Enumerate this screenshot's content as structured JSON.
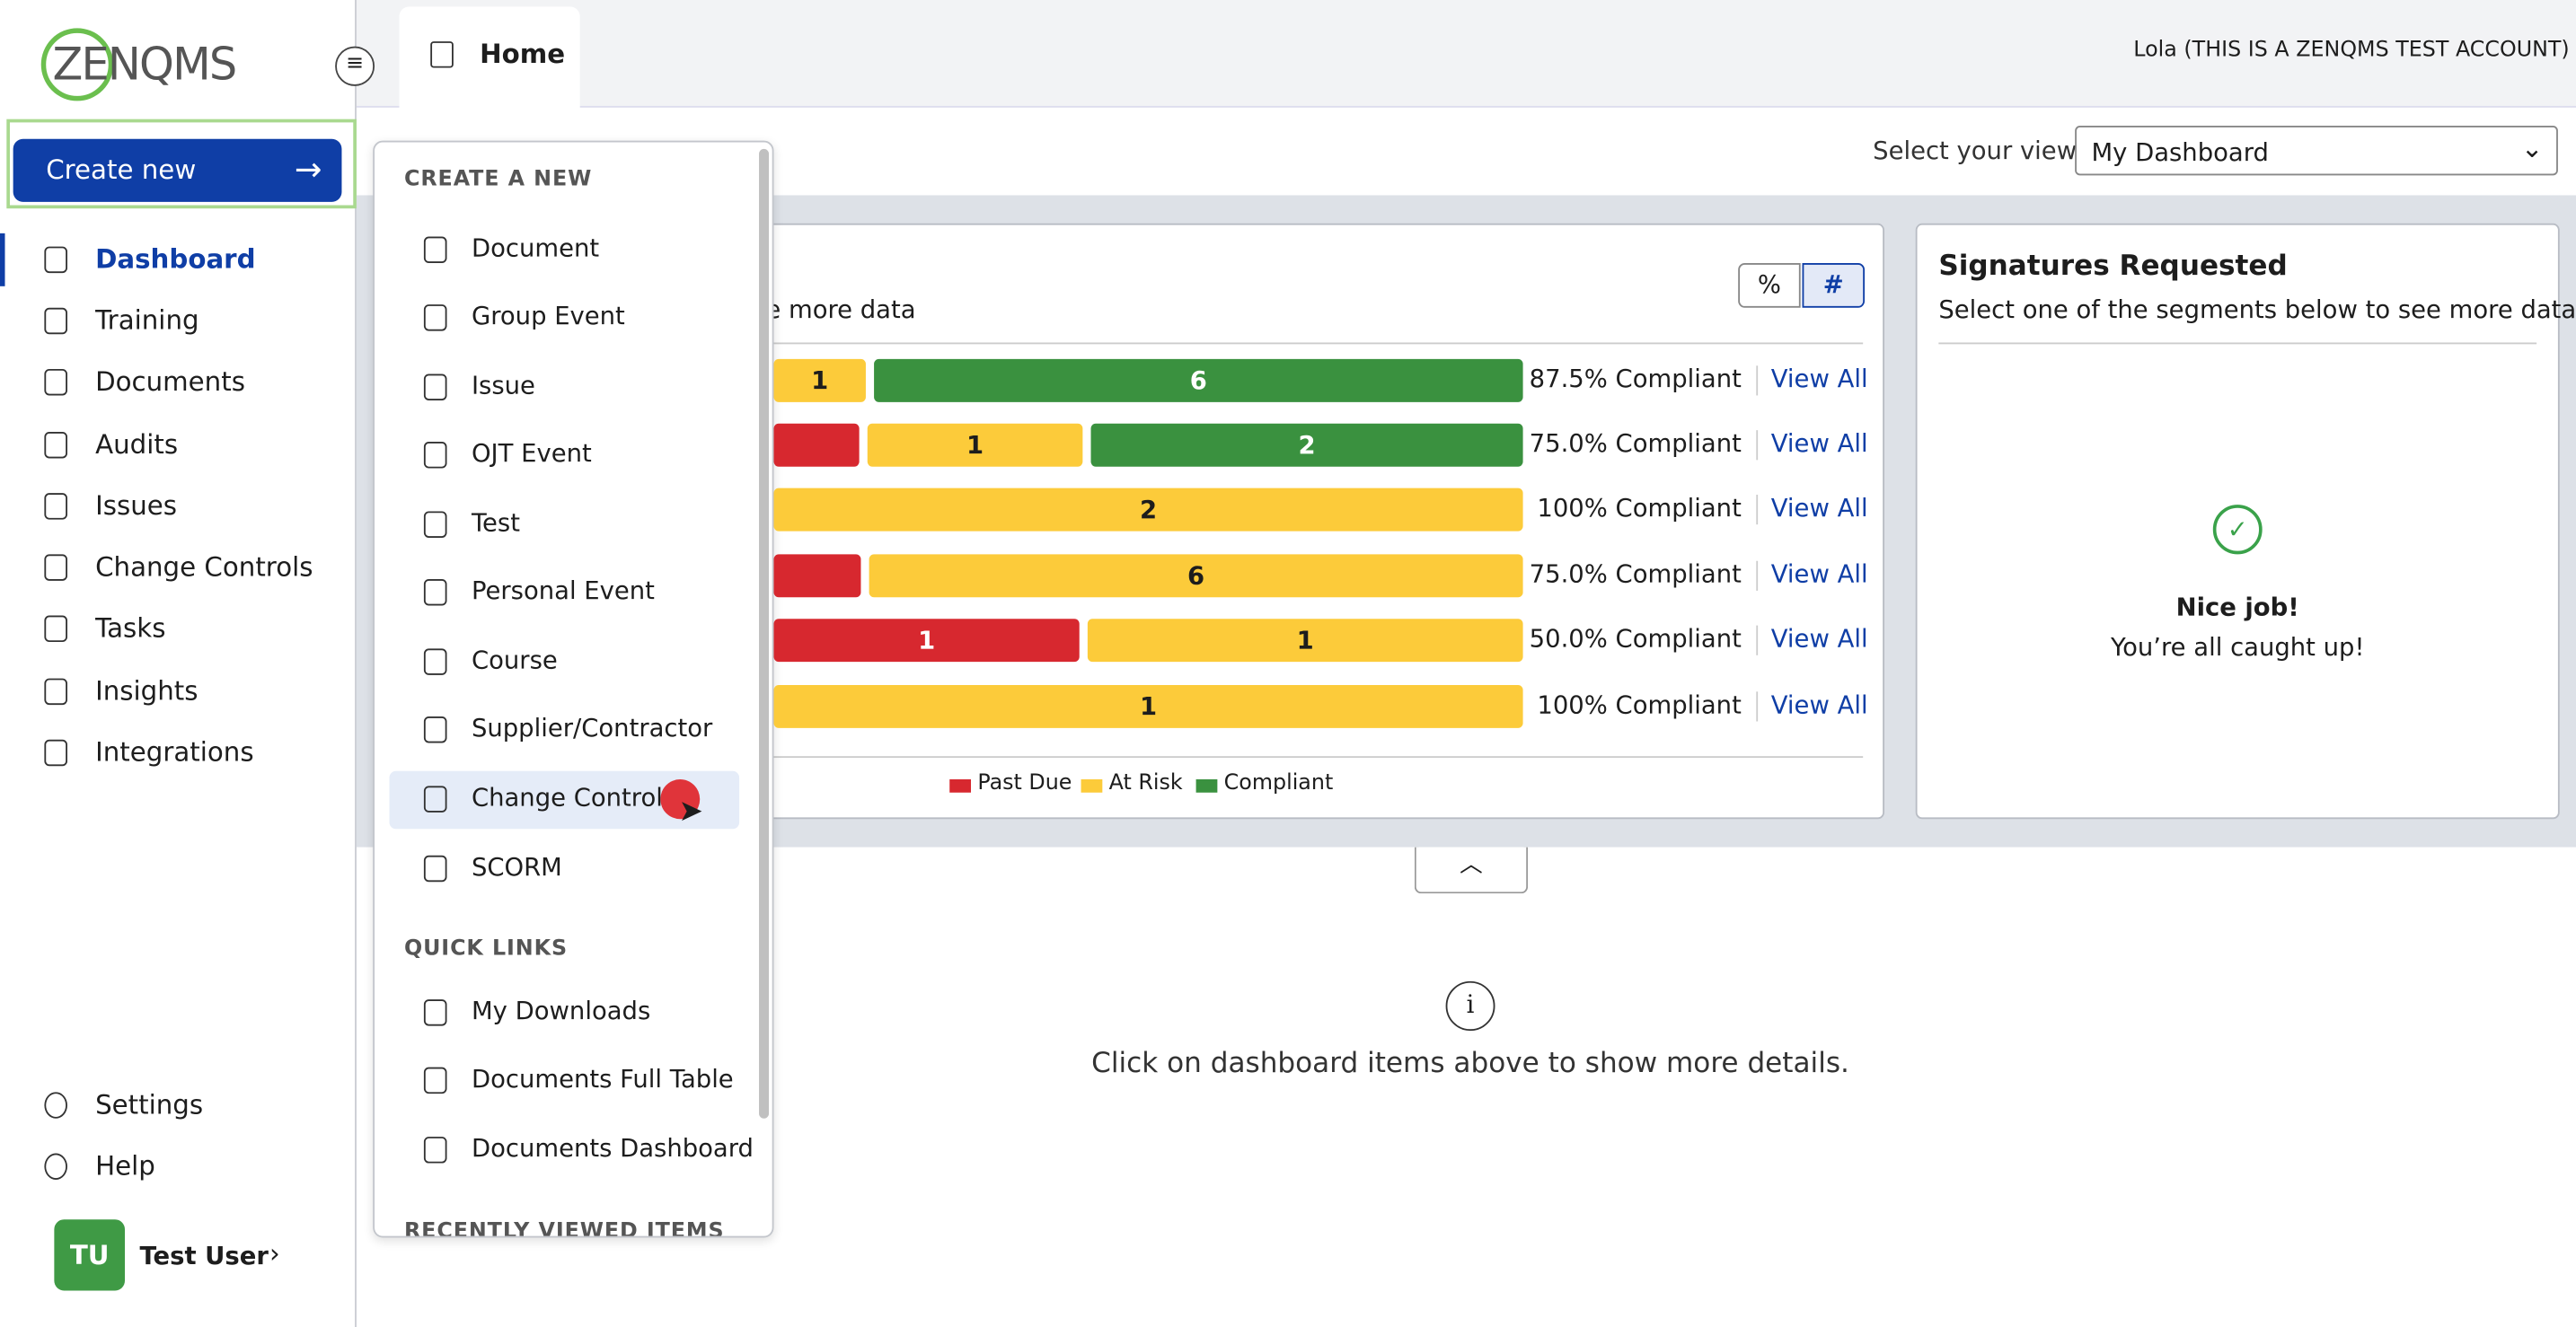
{
  "header": {
    "logo": "ZENQMS",
    "tab": "Home",
    "account": "Lola (THIS IS A ZENQMS TEST ACCOUNT)"
  },
  "sidebar": {
    "create_button": "Create new",
    "nav": [
      "Dashboard",
      "Training",
      "Documents",
      "Audits",
      "Issues",
      "Change Controls",
      "Tasks",
      "Insights",
      "Integrations"
    ],
    "bottom": [
      "Settings",
      "Help"
    ],
    "user_initials": "TU",
    "user_name": "Test User"
  },
  "view_select": {
    "label": "Select your view:",
    "value": "My Dashboard"
  },
  "menu": {
    "create_heading": "CREATE A NEW",
    "create_items": [
      "Document",
      "Group Event",
      "Issue",
      "OJT Event",
      "Test",
      "Personal Event",
      "Course",
      "Supplier/Contractor",
      "Change Control",
      "SCORM"
    ],
    "quick_heading": "QUICK LINKS",
    "quick_items": [
      "My Downloads",
      "Documents Full Table",
      "Documents Dashboard"
    ],
    "recent_heading": "RECENTLY VIEWED ITEMS"
  },
  "compliance_card": {
    "subtitle": "e more data",
    "toggle": [
      "%",
      "#"
    ],
    "rows": [
      {
        "segments": [
          "1",
          "6"
        ],
        "compliance": "87.5% Compliant",
        "link": "View All"
      },
      {
        "segments": [
          "1",
          "2"
        ],
        "compliance": "75.0% Compliant",
        "link": "View All"
      },
      {
        "segments": [
          "2"
        ],
        "compliance": "100% Compliant",
        "link": "View All"
      },
      {
        "segments": [
          "6"
        ],
        "compliance": "75.0% Compliant",
        "link": "View All"
      },
      {
        "segments": [
          "1",
          "1"
        ],
        "compliance": "50.0% Compliant",
        "link": "View All"
      },
      {
        "segments": [
          "1"
        ],
        "compliance": "100% Compliant",
        "link": "View All"
      }
    ],
    "legend": [
      "Past Due",
      "At Risk",
      "Compliant"
    ]
  },
  "signatures_card": {
    "title": "Signatures Requested",
    "subtitle": "Select one of the segments below to see more data",
    "message_title": "Nice job!",
    "message": "You’re all caught up!"
  },
  "details_hint": "Click on dashboard items above to show more details."
}
